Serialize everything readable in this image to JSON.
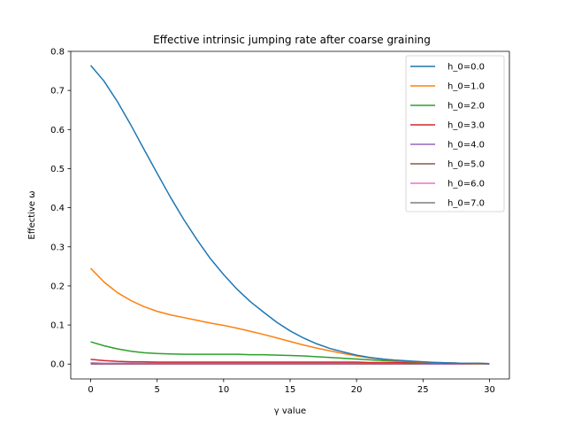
{
  "chart_data": {
    "type": "line",
    "title": "Effective intrinsic jumping rate after coarse graining",
    "xlabel": "γ value",
    "ylabel": "Effective ω",
    "xlim": [
      -1.5,
      31.5
    ],
    "ylim": [
      -0.038,
      0.8
    ],
    "xticks": [
      0,
      5,
      10,
      15,
      20,
      25,
      30
    ],
    "yticks": [
      0.0,
      0.1,
      0.2,
      0.3,
      0.4,
      0.5,
      0.6,
      0.7,
      0.8
    ],
    "xtick_labels": [
      "0",
      "5",
      "10",
      "15",
      "20",
      "25",
      "30"
    ],
    "ytick_labels": [
      "0.0",
      "0.1",
      "0.2",
      "0.3",
      "0.4",
      "0.5",
      "0.6",
      "0.7",
      "0.8"
    ],
    "grid": false,
    "legend_position": "top-right",
    "x": [
      0,
      1,
      2,
      3,
      4,
      5,
      6,
      7,
      8,
      9,
      10,
      11,
      12,
      13,
      14,
      15,
      16,
      17,
      18,
      19,
      20,
      21,
      22,
      23,
      24,
      25,
      26,
      27,
      28,
      29,
      30
    ],
    "series": [
      {
        "name": "h_0=0.0",
        "color": "#1f77b4",
        "values": [
          0.764,
          0.724,
          0.672,
          0.613,
          0.55,
          0.488,
          0.427,
          0.37,
          0.318,
          0.27,
          0.229,
          0.192,
          0.16,
          0.133,
          0.107,
          0.085,
          0.067,
          0.052,
          0.04,
          0.031,
          0.023,
          0.017,
          0.013,
          0.01,
          0.008,
          0.006,
          0.004,
          0.003,
          0.002,
          0.002,
          0.001
        ]
      },
      {
        "name": "h_0=1.0",
        "color": "#ff7f0e",
        "values": [
          0.245,
          0.21,
          0.183,
          0.163,
          0.147,
          0.135,
          0.126,
          0.119,
          0.112,
          0.105,
          0.099,
          0.092,
          0.084,
          0.076,
          0.067,
          0.058,
          0.049,
          0.041,
          0.034,
          0.027,
          0.021,
          0.016,
          0.012,
          0.009,
          0.007,
          0.005,
          0.004,
          0.003,
          0.002,
          0.001,
          0.001
        ]
      },
      {
        "name": "h_0=2.0",
        "color": "#2ca02c",
        "values": [
          0.057,
          0.047,
          0.039,
          0.033,
          0.029,
          0.027,
          0.026,
          0.025,
          0.025,
          0.025,
          0.025,
          0.025,
          0.024,
          0.024,
          0.023,
          0.022,
          0.021,
          0.019,
          0.017,
          0.015,
          0.013,
          0.011,
          0.009,
          0.008,
          0.006,
          0.005,
          0.004,
          0.003,
          0.002,
          0.002,
          0.001
        ]
      },
      {
        "name": "h_0=3.0",
        "color": "#d62728",
        "values": [
          0.012,
          0.009,
          0.007,
          0.006,
          0.006,
          0.005,
          0.005,
          0.005,
          0.005,
          0.005,
          0.005,
          0.005,
          0.005,
          0.005,
          0.005,
          0.005,
          0.005,
          0.005,
          0.005,
          0.005,
          0.005,
          0.004,
          0.004,
          0.004,
          0.003,
          0.003,
          0.003,
          0.002,
          0.002,
          0.002,
          0.001
        ]
      },
      {
        "name": "h_0=4.0",
        "color": "#9467bd",
        "values": [
          0.003,
          0.002,
          0.002,
          0.002,
          0.002,
          0.002,
          0.002,
          0.002,
          0.002,
          0.002,
          0.002,
          0.002,
          0.002,
          0.002,
          0.002,
          0.002,
          0.002,
          0.002,
          0.002,
          0.002,
          0.002,
          0.002,
          0.002,
          0.002,
          0.002,
          0.001,
          0.001,
          0.001,
          0.001,
          0.001,
          0.001
        ]
      },
      {
        "name": "h_0=5.0",
        "color": "#8c564b",
        "values": [
          0.001,
          0.001,
          0.001,
          0.001,
          0.001,
          0.001,
          0.001,
          0.001,
          0.001,
          0.001,
          0.001,
          0.001,
          0.001,
          0.001,
          0.001,
          0.001,
          0.001,
          0.001,
          0.001,
          0.001,
          0.001,
          0.001,
          0.001,
          0.001,
          0.001,
          0.001,
          0.001,
          0.001,
          0.001,
          0.001,
          0.001
        ]
      },
      {
        "name": "h_0=6.0",
        "color": "#e377c2",
        "values": [
          0.0005,
          0.0005,
          0.0005,
          0.0005,
          0.0005,
          0.0005,
          0.0005,
          0.0005,
          0.0005,
          0.0005,
          0.0005,
          0.0005,
          0.0005,
          0.0005,
          0.0005,
          0.0005,
          0.0005,
          0.0005,
          0.0005,
          0.0005,
          0.0005,
          0.0005,
          0.0005,
          0.0005,
          0.0005,
          0.0005,
          0.0005,
          0.0005,
          0.0005,
          0.0005,
          0.0005
        ]
      },
      {
        "name": "h_0=7.0",
        "color": "#7f7f7f",
        "values": [
          0.0002,
          0.0002,
          0.0002,
          0.0002,
          0.0002,
          0.0002,
          0.0002,
          0.0002,
          0.0002,
          0.0002,
          0.0002,
          0.0002,
          0.0002,
          0.0002,
          0.0002,
          0.0002,
          0.0002,
          0.0002,
          0.0002,
          0.0002,
          0.0002,
          0.0002,
          0.0002,
          0.0002,
          0.0002,
          0.0002,
          0.0002,
          0.0002,
          0.0002,
          0.0002,
          0.0002
        ]
      }
    ]
  }
}
